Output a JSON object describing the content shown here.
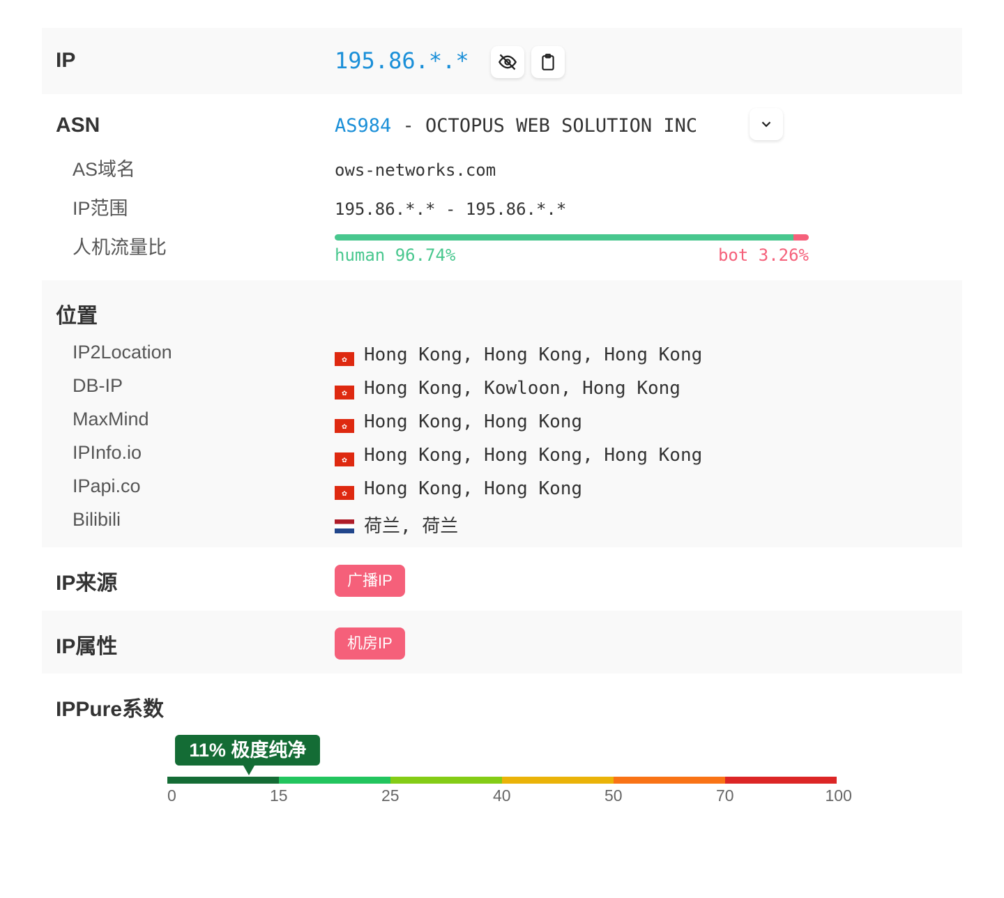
{
  "ip": {
    "label": "IP",
    "value": "195.86.*.*",
    "icons": [
      "eye-off-icon",
      "clipboard-icon"
    ]
  },
  "asn": {
    "label": "ASN",
    "number": "AS984",
    "name": " - OCTOPUS WEB SOLUTION INC",
    "domain_label": "AS域名",
    "domain": "ows-networks.com",
    "range_label": "IP范围",
    "range": "195.86.*.* - 195.86.*.*",
    "traffic_label": "人机流量比",
    "human": "human 96.74%",
    "bot": "bot 3.26%",
    "human_pct": 96.74,
    "bot_pct": 3.26
  },
  "location": {
    "label": "位置",
    "items": [
      {
        "source": "IP2Location",
        "flag": "hk",
        "value": "Hong Kong, Hong Kong, Hong Kong"
      },
      {
        "source": "DB-IP",
        "flag": "hk",
        "value": "Hong Kong, Kowloon, Hong Kong"
      },
      {
        "source": "MaxMind",
        "flag": "hk",
        "value": "Hong Kong, Hong Kong"
      },
      {
        "source": "IPInfo.io",
        "flag": "hk",
        "value": "Hong Kong, Hong Kong, Hong Kong"
      },
      {
        "source": "IPapi.co",
        "flag": "hk",
        "value": "Hong Kong, Hong Kong"
      },
      {
        "source": "Bilibili",
        "flag": "nl",
        "value": "荷兰, 荷兰"
      }
    ]
  },
  "source": {
    "label": "IP来源",
    "badge": "广播IP"
  },
  "attr": {
    "label": "IP属性",
    "badge": "机房IP"
  },
  "ippure": {
    "label": "IPPure系数",
    "score_label": "11% 极度纯净",
    "score": 11,
    "ticks": [
      "0",
      "15",
      "25",
      "40",
      "50",
      "70",
      "100"
    ],
    "colors": [
      "#146c35",
      "#22c55e",
      "#84cc16",
      "#eab308",
      "#f97316",
      "#dc2626"
    ]
  },
  "colors": {
    "accent": "#1a8fd8",
    "human": "#48c78e",
    "bot": "#f5607a",
    "badge": "#f5607a"
  }
}
